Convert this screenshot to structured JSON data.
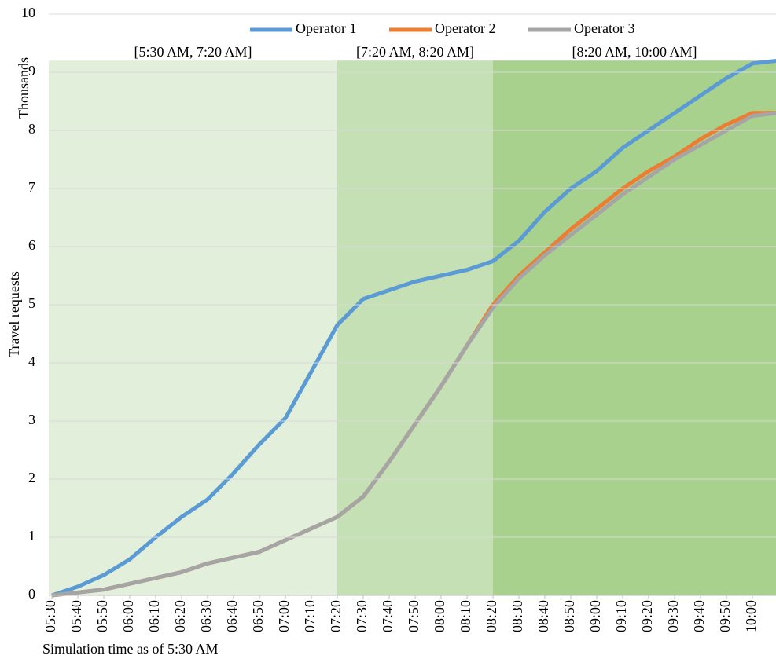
{
  "chart_data": {
    "type": "line",
    "y_label": "Travel requests",
    "y_unit_label": "Thousands",
    "x_label": "Simulation time as of 5:30 AM",
    "categories": [
      "05:30",
      "05:40",
      "05:50",
      "06:00",
      "06:10",
      "06:20",
      "06:30",
      "06:40",
      "06:50",
      "07:00",
      "07:10",
      "07:20",
      "07:30",
      "07:40",
      "07:50",
      "08:00",
      "08:10",
      "08:20",
      "08:30",
      "08:40",
      "08:50",
      "09:00",
      "09:10",
      "09:20",
      "09:30",
      "09:40",
      "09:50",
      "10:00",
      null
    ],
    "series": [
      {
        "name": "Operator 1",
        "color": "#5b9bd5",
        "values": [
          0,
          0.15,
          0.35,
          0.62,
          1.0,
          1.35,
          1.65,
          2.1,
          2.6,
          3.05,
          3.85,
          4.65,
          5.1,
          5.25,
          5.4,
          5.5,
          5.6,
          5.75,
          6.1,
          6.6,
          7.0,
          7.3,
          7.7,
          8.0,
          8.3,
          8.6,
          8.9,
          9.15,
          9.2
        ]
      },
      {
        "name": "Operator 2",
        "color": "#ed7d31",
        "values": [
          0,
          0.05,
          0.1,
          0.2,
          0.3,
          0.4,
          0.55,
          0.65,
          0.75,
          0.95,
          1.15,
          1.35,
          1.7,
          2.3,
          2.95,
          3.6,
          4.3,
          5.0,
          5.5,
          5.9,
          6.3,
          6.65,
          7.0,
          7.3,
          7.55,
          7.85,
          8.1,
          8.3,
          8.3
        ]
      },
      {
        "name": "Operator 3",
        "color": "#a5a5a5",
        "values": [
          0,
          0.05,
          0.1,
          0.2,
          0.3,
          0.4,
          0.55,
          0.65,
          0.75,
          0.95,
          1.15,
          1.35,
          1.7,
          2.3,
          2.95,
          3.6,
          4.3,
          4.95,
          5.45,
          5.85,
          6.2,
          6.55,
          6.9,
          7.2,
          7.5,
          7.75,
          8.0,
          8.25,
          8.3
        ]
      }
    ],
    "regions": [
      {
        "label": "[5:30 AM, 7:20 AM]",
        "start": "05:30",
        "end": "07:20",
        "top": 9.2,
        "color": "#e2efda"
      },
      {
        "label": "[7:20 AM, 8:20 AM]",
        "start": "07:20",
        "end": "08:20",
        "top": 9.2,
        "color": "#c5e0b4"
      },
      {
        "label": "[8:20 AM, 10:00 AM]",
        "start": "08:20",
        "end": null,
        "top": 9.2,
        "color": "#a9d18e"
      }
    ],
    "ylim": [
      0,
      10
    ],
    "yticks": [
      0,
      1,
      2,
      3,
      4,
      5,
      6,
      7,
      8,
      9,
      10
    ],
    "grid": true,
    "legend": "top"
  }
}
